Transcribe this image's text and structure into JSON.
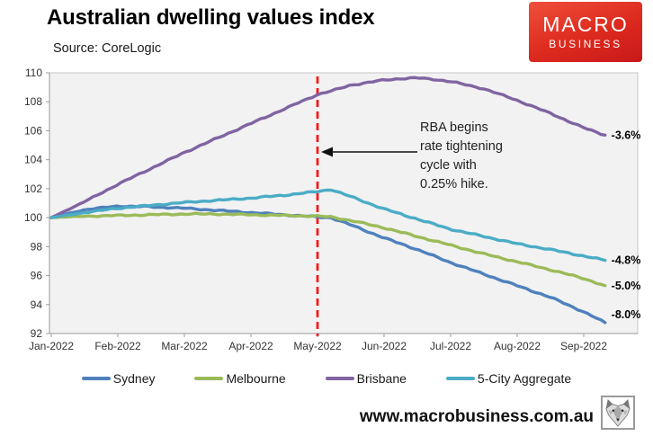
{
  "header": {
    "title": "Australian dwelling values index",
    "source": "Source: CoreLogic"
  },
  "logo": {
    "line1": "MACRO",
    "line2": "BUSINESS",
    "bg_color": "#d6231f"
  },
  "footer": {
    "url": "www.macrobusiness.com.au"
  },
  "chart_data": {
    "type": "line",
    "title": "Australian dwelling values index",
    "source": "Source: CoreLogic",
    "x_tick_labels": [
      "Jan-2022",
      "Feb-2022",
      "Mar-2022",
      "Apr-2022",
      "May-2022",
      "Jun-2022",
      "Jul-2022",
      "Aug-2022",
      "Sep-2022"
    ],
    "y_ticks": [
      92,
      94,
      96,
      98,
      100,
      102,
      104,
      106,
      108,
      110
    ],
    "ylim": [
      92,
      110
    ],
    "x_axis_range_months": [
      0,
      8.81
    ],
    "plot_background": "#f2f2f2",
    "grid": false,
    "legend_position": "bottom",
    "vline": {
      "x_month": 4.0,
      "color": "#ff0000",
      "style": "dashed"
    },
    "annotation": {
      "text": "RBA begins rate tightening cycle with 0.25% hike.",
      "lines": [
        "RBA begins",
        "rate tightening",
        "cycle with",
        "0.25% hike."
      ],
      "arrow_points_to_month": 4.0
    },
    "series": [
      {
        "name": "Sydney",
        "color": "#4f81bd",
        "end_label": "-8.0%",
        "points": [
          [
            0,
            100
          ],
          [
            0.5,
            100.55
          ],
          [
            1,
            100.8
          ],
          [
            1.5,
            100.75
          ],
          [
            2,
            100.65
          ],
          [
            2.5,
            100.5
          ],
          [
            3,
            100.35
          ],
          [
            3.5,
            100.2
          ],
          [
            4,
            100.05
          ],
          [
            4.2,
            100.0
          ],
          [
            4.5,
            99.5
          ],
          [
            5,
            98.6
          ],
          [
            5.5,
            97.8
          ],
          [
            6,
            96.9
          ],
          [
            6.5,
            96.1
          ],
          [
            7,
            95.3
          ],
          [
            7.5,
            94.5
          ],
          [
            8,
            93.5
          ],
          [
            8.32,
            92.75
          ]
        ]
      },
      {
        "name": "Melbourne",
        "color": "#9bbb59",
        "end_label": "-5.0%",
        "points": [
          [
            0,
            100
          ],
          [
            0.5,
            100.1
          ],
          [
            1,
            100.15
          ],
          [
            1.5,
            100.2
          ],
          [
            2,
            100.25
          ],
          [
            2.5,
            100.25
          ],
          [
            3,
            100.2
          ],
          [
            3.5,
            100.15
          ],
          [
            4,
            100.1
          ],
          [
            4.2,
            100.05
          ],
          [
            4.5,
            99.8
          ],
          [
            5,
            99.3
          ],
          [
            5.5,
            98.7
          ],
          [
            6,
            98.1
          ],
          [
            6.5,
            97.5
          ],
          [
            7,
            96.95
          ],
          [
            7.5,
            96.4
          ],
          [
            8,
            95.8
          ],
          [
            8.32,
            95.3
          ]
        ]
      },
      {
        "name": "Brisbane",
        "color": "#8064a2",
        "end_label": "-3.6%",
        "points": [
          [
            0,
            100
          ],
          [
            0.5,
            101.1
          ],
          [
            1,
            102.3
          ],
          [
            1.5,
            103.4
          ],
          [
            2,
            104.5
          ],
          [
            2.5,
            105.5
          ],
          [
            3,
            106.5
          ],
          [
            3.5,
            107.5
          ],
          [
            4,
            108.5
          ],
          [
            4.25,
            108.8
          ],
          [
            4.5,
            109.15
          ],
          [
            5,
            109.5
          ],
          [
            5.25,
            109.6
          ],
          [
            5.5,
            109.65
          ],
          [
            5.75,
            109.55
          ],
          [
            6,
            109.4
          ],
          [
            6.5,
            108.9
          ],
          [
            7,
            108.1
          ],
          [
            7.5,
            107.2
          ],
          [
            8,
            106.2
          ],
          [
            8.32,
            105.7
          ]
        ]
      },
      {
        "name": "5-City Aggregate",
        "color": "#4bacc6",
        "end_label": "-4.8%",
        "points": [
          [
            0,
            100
          ],
          [
            0.5,
            100.35
          ],
          [
            1,
            100.65
          ],
          [
            1.5,
            100.85
          ],
          [
            2,
            101.05
          ],
          [
            2.5,
            101.2
          ],
          [
            3,
            101.35
          ],
          [
            3.5,
            101.55
          ],
          [
            4,
            101.8
          ],
          [
            4.2,
            101.95
          ],
          [
            4.5,
            101.45
          ],
          [
            5,
            100.6
          ],
          [
            5.5,
            99.9
          ],
          [
            6,
            99.2
          ],
          [
            6.5,
            98.7
          ],
          [
            7,
            98.2
          ],
          [
            7.5,
            97.8
          ],
          [
            8,
            97.35
          ],
          [
            8.32,
            97.05
          ]
        ]
      }
    ]
  }
}
